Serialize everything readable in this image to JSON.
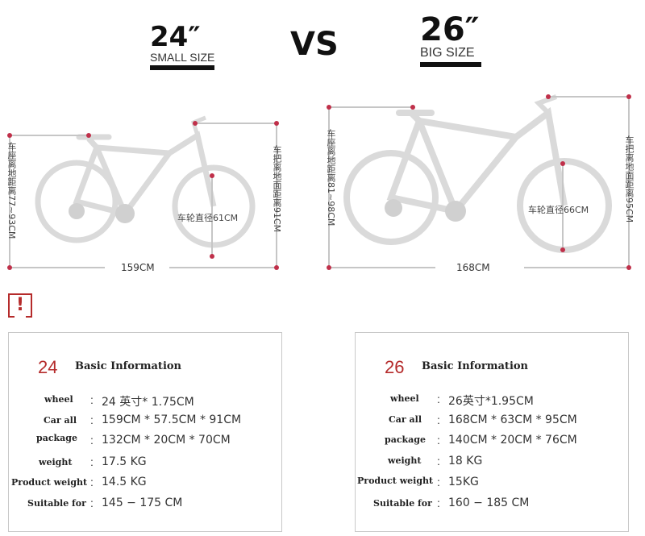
{
  "header": {
    "left_size": "24″",
    "left_sub": "SMALL SIZE",
    "vs": "VS",
    "right_size": "26″",
    "right_sub": "BIG SIZE"
  },
  "bike_small": {
    "seat_height": "车座离地距离77~93CM",
    "handle_height": "车把离地面距离91CM",
    "wheel_diameter": "车轮直径61CM",
    "length": "159CM"
  },
  "bike_big": {
    "seat_height": "车座离地距离81~98CM",
    "handle_height": "车把离地面距离95CM",
    "wheel_diameter": "车轮直径66CM",
    "length": "168CM"
  },
  "warning_icon": "exclamation-icon",
  "panels": [
    {
      "number": "24",
      "title": "Basic Information",
      "rows": [
        {
          "label": "wheel",
          "value": "24 英寸* 1.75CM"
        },
        {
          "label": "Car all",
          "value": "159CM * 57.5CM * 91CM"
        },
        {
          "label": "package",
          "value": "132CM * 20CM * 70CM"
        },
        {
          "label": "weight",
          "value": "17.5 KG"
        },
        {
          "label": "Product weight",
          "value": "14.5 KG"
        },
        {
          "label": "Suitable for",
          "value": "145 − 175 CM"
        }
      ]
    },
    {
      "number": "26",
      "title": "Basic Information",
      "rows": [
        {
          "label": "wheel",
          "value": "26英寸*1.95CM"
        },
        {
          "label": "Car all",
          "value": "168CM * 63CM * 95CM"
        },
        {
          "label": "package",
          "value": "140CM * 20CM * 76CM"
        },
        {
          "label": "weight",
          "value": "18 KG"
        },
        {
          "label": "Product weight",
          "value": "15KG"
        },
        {
          "label": "Suitable for",
          "value": "160 − 185 CM"
        }
      ]
    }
  ],
  "colors": {
    "accent": "#b52b2b",
    "bike": "#d9d9d9",
    "dim_line": "#c2c2c2",
    "dot": "#c0304a"
  }
}
